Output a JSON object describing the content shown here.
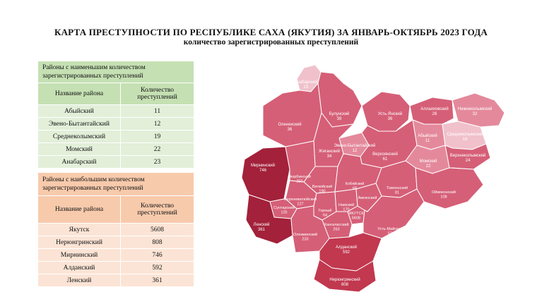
{
  "title": "КАРТА ПРЕСТУПНОСТИ ПО РЕСПУБЛИКЕ САХА  (ЯКУТИЯ) ЗА ЯНВАРЬ-ОКТЯБРЬ 2023 ГОДА",
  "subtitle": "количество зарегистрированных преступлений",
  "low_table": {
    "caption": "Районы с наименьшим количеством зарегистрированных преступлений",
    "col_district": "Название района",
    "col_count": "Количество преступлений",
    "rows": [
      {
        "name": "Абыйский",
        "count": "11"
      },
      {
        "name": "Эвено-Бытантайский",
        "count": "12"
      },
      {
        "name": "Среднеколымский",
        "count": "19"
      },
      {
        "name": "Момский",
        "count": "22"
      },
      {
        "name": "Анабарский",
        "count": "23"
      }
    ]
  },
  "high_table": {
    "caption": "Районы с наибольшим количеством зарегистрированных преступлений",
    "col_district": "Название района",
    "col_count": "Количество преступлений",
    "rows": [
      {
        "name": "Якутск",
        "count": "5608"
      },
      {
        "name": "Нерюнгринский",
        "count": "808"
      },
      {
        "name": "Мирнинский",
        "count": "746"
      },
      {
        "name": "Алданский",
        "count": "592"
      },
      {
        "name": "Ленский",
        "count": "361"
      }
    ]
  },
  "map": {
    "colors": {
      "very_high": "#a3213a",
      "high": "#c1384f",
      "medium": "#d55f77",
      "low": "#e4899c",
      "very_low": "#f0c1cb"
    },
    "districts": [
      {
        "id": "anabarsky",
        "name": "Анабарский",
        "count": "23",
        "level": "very_low"
      },
      {
        "id": "bulunsky",
        "name": "Булунский",
        "count": "39",
        "level": "medium"
      },
      {
        "id": "ust-yansky",
        "name": "Усть-Янский",
        "count": "36",
        "level": "medium"
      },
      {
        "id": "allaikhovsky",
        "name": "Аллаиховский",
        "count": "26",
        "level": "medium"
      },
      {
        "id": "nizhnekolymsky",
        "name": "Нижнеколымский",
        "count": "32",
        "level": "low"
      },
      {
        "id": "olenek",
        "name": "Оленекский",
        "count": "36",
        "level": "medium"
      },
      {
        "id": "abyisky",
        "name": "Абыйский",
        "count": "11",
        "level": "low"
      },
      {
        "id": "srednekolymsky",
        "name": "Среднеколымский",
        "count": "19",
        "level": "very_low"
      },
      {
        "id": "evenobytantaisky",
        "name": "Эвено-Бытантайский",
        "count": "12",
        "level": "low"
      },
      {
        "id": "zhigansky",
        "name": "Жиганский",
        "count": "34",
        "level": "medium"
      },
      {
        "id": "verkhoyansky",
        "name": "Верхоянский",
        "count": "61",
        "level": "medium"
      },
      {
        "id": "momsky",
        "name": "Момский",
        "count": "22",
        "level": "low"
      },
      {
        "id": "verkhnekolymsky",
        "name": "Верхнеколымский",
        "count": "24",
        "level": "medium"
      },
      {
        "id": "mirninsky",
        "name": "Мирнинский",
        "count": "746",
        "level": "very_high"
      },
      {
        "id": "nyurbinsky",
        "name": "Нюрбинский",
        "count": "250",
        "level": "medium"
      },
      {
        "id": "vilyuisky",
        "name": "Вилюйский",
        "count": "190",
        "level": "medium"
      },
      {
        "id": "kobyaisky",
        "name": "Кобяйский",
        "count": "68",
        "level": "medium"
      },
      {
        "id": "tomponsky",
        "name": "Томпонский",
        "count": "81",
        "level": "medium"
      },
      {
        "id": "oimyakonsky",
        "name": "Оймяконский",
        "count": "108",
        "level": "medium"
      },
      {
        "id": "verkhnevilyuisky",
        "name": "Верхневилюйский",
        "count": "127",
        "level": "medium"
      },
      {
        "id": "suntarsky",
        "name": "Сунтарский",
        "count": "125",
        "level": "medium"
      },
      {
        "id": "gorny",
        "name": "Горный",
        "count": "64",
        "level": "medium"
      },
      {
        "id": "namsky",
        "name": "Намский",
        "count": "170",
        "level": "medium"
      },
      {
        "id": "yakutsk",
        "name": "ЯКУТСК",
        "count": "5608",
        "level": "medium"
      },
      {
        "id": "lensky",
        "name": "Ленский",
        "count": "361",
        "level": "very_high"
      },
      {
        "id": "olekminsky",
        "name": "Олекминский",
        "count": "233",
        "level": "medium"
      },
      {
        "id": "khangalassky",
        "name": "Хангаласский",
        "count": "263",
        "level": "medium"
      },
      {
        "id": "ust-maisky",
        "name": "Усть-Майский",
        "count": "53",
        "level": "medium"
      },
      {
        "id": "amginsky",
        "name": "Амгинский",
        "count": "",
        "level": "medium"
      },
      {
        "id": "aldansky",
        "name": "Алданский",
        "count": "592",
        "level": "high"
      },
      {
        "id": "neryungrinsky",
        "name": "Нерюнгринский",
        "count": "808",
        "level": "high"
      }
    ]
  }
}
